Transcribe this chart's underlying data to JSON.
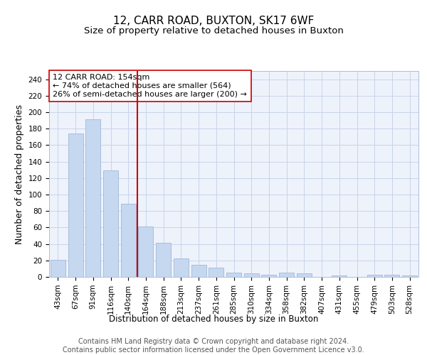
{
  "title1": "12, CARR ROAD, BUXTON, SK17 6WF",
  "title2": "Size of property relative to detached houses in Buxton",
  "xlabel": "Distribution of detached houses by size in Buxton",
  "ylabel": "Number of detached properties",
  "bar_labels": [
    "43sqm",
    "67sqm",
    "91sqm",
    "116sqm",
    "140sqm",
    "164sqm",
    "188sqm",
    "213sqm",
    "237sqm",
    "261sqm",
    "285sqm",
    "310sqm",
    "334sqm",
    "358sqm",
    "382sqm",
    "407sqm",
    "431sqm",
    "455sqm",
    "479sqm",
    "503sqm",
    "528sqm"
  ],
  "bar_values": [
    21,
    174,
    191,
    129,
    89,
    61,
    41,
    22,
    15,
    11,
    5,
    4,
    3,
    5,
    4,
    0,
    2,
    0,
    3,
    3,
    2
  ],
  "bar_color": "#c5d8f0",
  "bar_edge_color": "#a0b8d8",
  "vline_index": 4.5,
  "vline_color": "#cc0000",
  "annotation_text": "12 CARR ROAD: 154sqm\n← 74% of detached houses are smaller (564)\n26% of semi-detached houses are larger (200) →",
  "annotation_box_color": "white",
  "annotation_box_edge": "#cc0000",
  "ylim": [
    0,
    250
  ],
  "yticks": [
    0,
    20,
    40,
    60,
    80,
    100,
    120,
    140,
    160,
    180,
    200,
    220,
    240
  ],
  "grid_color": "#c8d4ea",
  "background_color": "#eef2fb",
  "footer_text": "Contains HM Land Registry data © Crown copyright and database right 2024.\nContains public sector information licensed under the Open Government Licence v3.0.",
  "title1_fontsize": 11,
  "title2_fontsize": 9.5,
  "xlabel_fontsize": 8.5,
  "ylabel_fontsize": 9,
  "tick_fontsize": 7.5,
  "annotation_fontsize": 8,
  "footer_fontsize": 7
}
